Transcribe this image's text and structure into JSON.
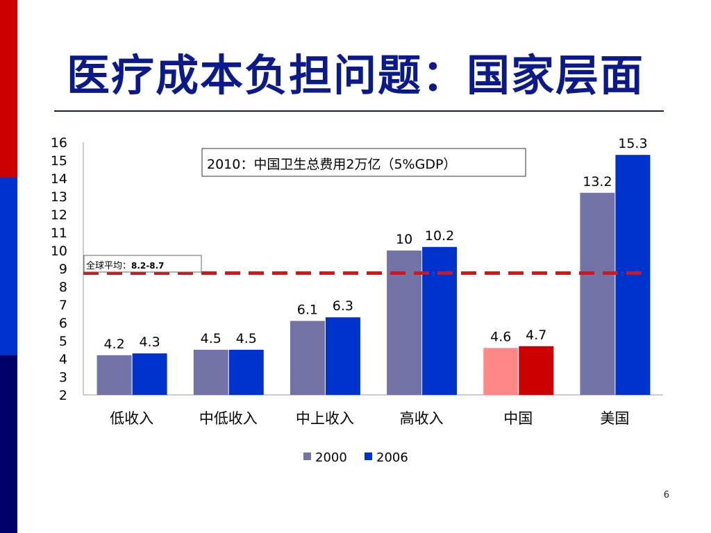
{
  "title": "医疗成本负担问题：国家层面",
  "page_number": "6",
  "colors": {
    "bar_red": "#cc0000",
    "bar_blue": "#0033cc",
    "bar_navy": "#000066",
    "accent_red": "#dd1111",
    "title_blue": "#0a1a8a"
  },
  "chart_data": {
    "type": "bar",
    "categories": [
      "低收入",
      "中低收入",
      "中上收入",
      "高收入",
      "中国",
      "美国"
    ],
    "series": [
      {
        "name": "2000",
        "values": [
          4.2,
          4.5,
          6.1,
          10,
          4.6,
          13.2
        ],
        "color": "#7373a8",
        "highlight_color": "#ff8888"
      },
      {
        "name": "2006",
        "values": [
          4.3,
          4.5,
          6.3,
          10.2,
          4.7,
          15.3
        ],
        "color": "#0033cc",
        "highlight_color": "#cc0000"
      }
    ],
    "highlight_category": "中国",
    "data_labels": [
      [
        "4.2",
        "4.5",
        "6.1",
        "10",
        "4.6",
        "13.2"
      ],
      [
        "4.3",
        "4.5",
        "6.3",
        "10.2",
        "4.7",
        "15.3"
      ]
    ],
    "y_ticks": [
      "2",
      "3",
      "4",
      "5",
      "6",
      "7",
      "8",
      "9",
      "10",
      "11",
      "12",
      "13",
      "14",
      "15",
      "16"
    ],
    "ylim": [
      2,
      16
    ],
    "reference_line": {
      "value": 8.75,
      "label_prefix": "全球平均：",
      "label_value": "8.2-8.7",
      "color": "#dd1111"
    },
    "annotation_parts": [
      "2010：中国卫生总费用",
      "2",
      "万亿（",
      "5%GDP",
      "）"
    ],
    "legend": [
      "2000",
      "2006"
    ],
    "legend_position": "bottom",
    "grid": false
  }
}
